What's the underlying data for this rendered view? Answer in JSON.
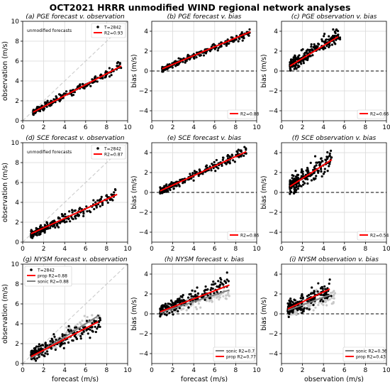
{
  "title": "OCT2021 HRRR unmodified WIND regional network analyses",
  "chart_data": [
    {
      "type": "scatter",
      "title": "(a) PGE forecast v. observation",
      "xlabel": "",
      "ylabel": "observation (m/s)",
      "xlim": [
        0,
        10
      ],
      "ylim": [
        0,
        10
      ],
      "xticks": [
        "0",
        "2",
        "4",
        "6",
        "8",
        "10"
      ],
      "yticks": [
        "0",
        "2",
        "4",
        "6",
        "8",
        "10"
      ],
      "grid": true,
      "diagonal": true,
      "zero_line": false,
      "annotation": "unmodified forecasts",
      "legend": [
        "T=2842",
        "R2=0.93"
      ],
      "legend_position": "top-right",
      "scatter_series": [
        {
          "color": "#000000",
          "x_range": [
            1.0,
            9.4
          ],
          "slope": 0.56,
          "intercept": 0.3,
          "spread": 0.22,
          "n": 220
        }
      ],
      "fit_lines": [
        {
          "color": "#ff0000",
          "x": [
            1.0,
            9.4
          ],
          "y": [
            0.86,
            5.5
          ]
        }
      ]
    },
    {
      "type": "scatter",
      "title": "(b) PGE forecast v. bias",
      "xlabel": "",
      "ylabel": "bias (m/s)",
      "xlim": [
        0,
        10
      ],
      "ylim": [
        -5,
        5
      ],
      "xticks": [
        "0",
        "2",
        "4",
        "6",
        "8",
        "10"
      ],
      "yticks": [
        "−4",
        "−2",
        "0",
        "2",
        "4"
      ],
      "grid": true,
      "diagonal": false,
      "zero_line": true,
      "legend": [
        "R2=0.88"
      ],
      "legend_position": "bottom-right",
      "scatter_series": [
        {
          "color": "#000000",
          "x_range": [
            1.0,
            9.4
          ],
          "slope": 0.44,
          "intercept": -0.25,
          "spread": 0.2,
          "n": 220
        }
      ],
      "fit_lines": [
        {
          "color": "#ff0000",
          "x": [
            1.0,
            9.4
          ],
          "y": [
            0.22,
            3.95
          ]
        }
      ]
    },
    {
      "type": "scatter",
      "title": "(c) PGE observation v. bias",
      "xlabel": "",
      "ylabel": "bias (m/s)",
      "xlim": [
        0,
        10
      ],
      "ylim": [
        -5,
        5
      ],
      "xticks": [
        "0",
        "2",
        "4",
        "6",
        "8",
        "10"
      ],
      "yticks": [
        "−4",
        "−2",
        "0",
        "2",
        "4"
      ],
      "grid": true,
      "diagonal": false,
      "zero_line": true,
      "legend": [
        "R2=0.66"
      ],
      "legend_position": "bottom-right",
      "scatter_series": [
        {
          "color": "#000000",
          "x_range": [
            0.8,
            5.6
          ],
          "slope": 0.7,
          "intercept": -0.1,
          "spread": 0.45,
          "n": 220
        }
      ],
      "fit_lines": [
        {
          "color": "#ff0000",
          "x": [
            0.8,
            5.4
          ],
          "y": [
            0.5,
            3.45
          ]
        }
      ]
    },
    {
      "type": "scatter",
      "title": "(d) SCE forecast v. observation",
      "xlabel": "",
      "ylabel": "observation (m/s)",
      "xlim": [
        0,
        10
      ],
      "ylim": [
        0,
        10
      ],
      "xticks": [
        "0",
        "2",
        "4",
        "6",
        "8",
        "10"
      ],
      "yticks": [
        "0",
        "2",
        "4",
        "6",
        "8",
        "10"
      ],
      "grid": true,
      "diagonal": true,
      "zero_line": false,
      "annotation": "unmodified forecasts",
      "legend": [
        "T=2842",
        "R2=0.87"
      ],
      "legend_position": "top-right",
      "scatter_series": [
        {
          "color": "#000000",
          "x_range": [
            0.8,
            9.0
          ],
          "slope": 0.5,
          "intercept": 0.35,
          "spread": 0.3,
          "n": 220
        }
      ],
      "fit_lines": [
        {
          "color": "#ff0000",
          "x": [
            0.8,
            9.0
          ],
          "y": [
            0.85,
            4.8
          ]
        }
      ]
    },
    {
      "type": "scatter",
      "title": "(e) SCE forecast v. bias",
      "xlabel": "",
      "ylabel": "bias (m/s)",
      "xlim": [
        0,
        10
      ],
      "ylim": [
        -5,
        5
      ],
      "xticks": [
        "0",
        "2",
        "4",
        "6",
        "8",
        "10"
      ],
      "yticks": [
        "−4",
        "−2",
        "0",
        "2",
        "4"
      ],
      "grid": true,
      "diagonal": false,
      "zero_line": true,
      "legend": [
        "R2=0.86"
      ],
      "legend_position": "bottom-right",
      "scatter_series": [
        {
          "color": "#000000",
          "x_range": [
            0.8,
            9.0
          ],
          "slope": 0.5,
          "intercept": -0.3,
          "spread": 0.3,
          "n": 220
        }
      ],
      "fit_lines": [
        {
          "color": "#ff0000",
          "x": [
            0.8,
            9.0
          ],
          "y": [
            0.15,
            4.1
          ]
        }
      ]
    },
    {
      "type": "scatter",
      "title": "(f) SCE observation v. bias",
      "xlabel": "",
      "ylabel": "bias (m/s)",
      "xlim": [
        0,
        10
      ],
      "ylim": [
        -5,
        5
      ],
      "xticks": [
        "0",
        "2",
        "4",
        "6",
        "8",
        "10"
      ],
      "yticks": [
        "−4",
        "−2",
        "0",
        "2",
        "4"
      ],
      "grid": true,
      "diagonal": false,
      "zero_line": true,
      "legend": [
        "R2=0.54"
      ],
      "legend_position": "bottom-right",
      "scatter_series": [
        {
          "color": "#000000",
          "x_range": [
            0.8,
            4.8
          ],
          "slope": 0.68,
          "intercept": 0.1,
          "spread": 0.55,
          "n": 220
        }
      ],
      "fit_lines": [
        {
          "color": "#ff0000",
          "x": [
            0.8,
            4.8
          ],
          "y": [
            0.6,
            3.3
          ]
        }
      ]
    },
    {
      "type": "scatter",
      "title": "(g) NYSM forecast v. observation",
      "xlabel": "forecast (m/s)",
      "ylabel": "observation (m/s)",
      "xlim": [
        0,
        10
      ],
      "ylim": [
        0,
        10
      ],
      "xticks": [
        "0",
        "2",
        "4",
        "6",
        "8",
        "10"
      ],
      "yticks": [
        "0",
        "2",
        "4",
        "6",
        "8",
        "10"
      ],
      "grid": true,
      "diagonal": true,
      "zero_line": false,
      "legend": [
        "T=2842",
        "prop R2=0.88",
        "sonic R2=0.88"
      ],
      "legend_position": "top-left",
      "scatter_series": [
        {
          "color": "#c8c8c8",
          "x_range": [
            0.8,
            7.4
          ],
          "slope": 0.62,
          "intercept": 0.2,
          "spread": 0.4,
          "n": 170
        },
        {
          "color": "#000000",
          "x_range": [
            0.8,
            7.4
          ],
          "slope": 0.5,
          "intercept": 0.45,
          "spread": 0.45,
          "n": 200
        }
      ],
      "fit_lines": [
        {
          "color": "#808080",
          "x": [
            0.8,
            7.2
          ],
          "y": [
            0.55,
            4.8
          ]
        },
        {
          "color": "#ff0000",
          "x": [
            0.8,
            7.2
          ],
          "y": [
            0.7,
            4.2
          ]
        }
      ]
    },
    {
      "type": "scatter",
      "title": "(h) NYSM forecast v. bias",
      "xlabel": "forecast (m/s)",
      "ylabel": "bias (m/s)",
      "xlim": [
        0,
        10
      ],
      "ylim": [
        -5,
        5
      ],
      "xticks": [
        "0",
        "2",
        "4",
        "6",
        "8",
        "10"
      ],
      "yticks": [
        "−4",
        "−2",
        "0",
        "2",
        "4"
      ],
      "grid": true,
      "diagonal": false,
      "zero_line": true,
      "legend": [
        "sonic R2=0.7",
        "prop R2=0.77"
      ],
      "legend_position": "bottom-right",
      "scatter_series": [
        {
          "color": "#c8c8c8",
          "x_range": [
            0.8,
            7.4
          ],
          "slope": 0.3,
          "intercept": -0.05,
          "spread": 0.35,
          "n": 170
        },
        {
          "color": "#000000",
          "x_range": [
            0.8,
            7.4
          ],
          "slope": 0.45,
          "intercept": -0.1,
          "spread": 0.45,
          "n": 200
        }
      ],
      "fit_lines": [
        {
          "color": "#808080",
          "x": [
            0.8,
            7.4
          ],
          "y": [
            0.1,
            2.4
          ]
        },
        {
          "color": "#ff0000",
          "x": [
            0.8,
            7.4
          ],
          "y": [
            0.2,
            2.9
          ]
        }
      ]
    },
    {
      "type": "scatter",
      "title": "(i) NYSM observation v. bias",
      "xlabel": "observation (m/s)",
      "ylabel": "bias (m/s)",
      "xlim": [
        0,
        10
      ],
      "ylim": [
        -5,
        5
      ],
      "xticks": [
        "0",
        "2",
        "4",
        "6",
        "8",
        "10"
      ],
      "yticks": [
        "−4",
        "−2",
        "0",
        "2",
        "4"
      ],
      "grid": true,
      "diagonal": false,
      "zero_line": true,
      "legend": [
        "sonic R2=0.36",
        "prop R2=0.43"
      ],
      "legend_position": "bottom-right",
      "scatter_series": [
        {
          "color": "#c8c8c8",
          "x_range": [
            0.6,
            5.2
          ],
          "slope": 0.35,
          "intercept": 0.1,
          "spread": 0.45,
          "n": 170
        },
        {
          "color": "#000000",
          "x_range": [
            0.6,
            4.8
          ],
          "slope": 0.45,
          "intercept": 0.25,
          "spread": 0.6,
          "n": 200
        }
      ],
      "fit_lines": [
        {
          "color": "#808080",
          "x": [
            0.6,
            4.6
          ],
          "y": [
            0.35,
            1.9
          ]
        },
        {
          "color": "#ff0000",
          "x": [
            0.6,
            4.6
          ],
          "y": [
            0.5,
            2.5
          ]
        }
      ]
    }
  ]
}
